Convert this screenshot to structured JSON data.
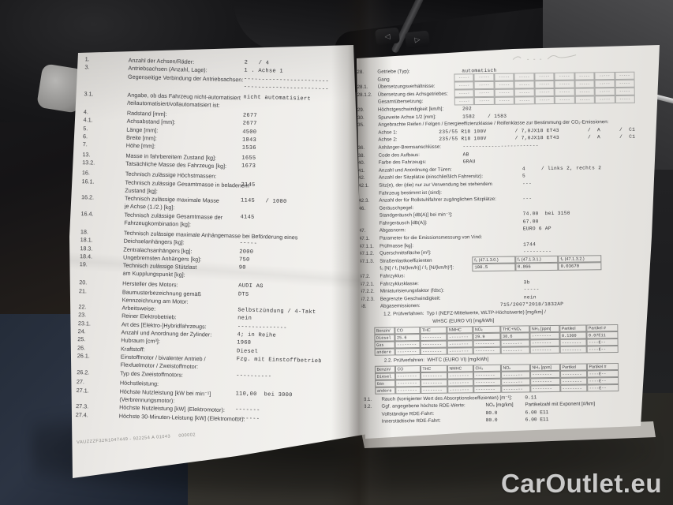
{
  "watermark": "CarOutlet.eu",
  "scene": {
    "left_arrow": "◁",
    "right_arrow": "▷"
  },
  "left_page": {
    "rows": [
      {
        "num": "1.",
        "l1": "Anzahl der Achsen/Räder:",
        "v1": "2   / 4"
      },
      {
        "num": "3.",
        "l1": "Antriebsachsen (Anzahl, Lage):",
        "v1": "1 . Achse 1"
      },
      {
        "l1": "Gegenseitige Verbindung der Antriebsachsen:",
        "v1": "------------------------",
        "l2": " ",
        "v2": "------------------------"
      },
      {
        "num": "3.1.",
        "l1": "Angabe, ob das Fahrzeug nicht-automatisiert",
        "v1": "nicht automatisiert",
        "l2": "/teilautomatisiert/vollautomatisiert ist:",
        "gap": 1
      },
      {
        "num": "4.",
        "l1": "Radstand [mm]:",
        "v1": "2677",
        "gap": 1
      },
      {
        "num": "4.1.",
        "l1": "Achsabstand [mm]:",
        "v1": "2677"
      },
      {
        "num": "5.",
        "l1": "Länge [mm]:",
        "v1": "4500"
      },
      {
        "num": "6.",
        "l1": "Breite [mm]:",
        "v1": "1843"
      },
      {
        "num": "7.",
        "l1": "Höhe [mm]:",
        "v1": "1536"
      },
      {
        "num": "13.",
        "l1": "Masse in fahrbereitem Zustand [kg]:",
        "v1": "1655",
        "gap": 1
      },
      {
        "num": "13.2.",
        "l1": "Tatsächliche Masse des Fahrzeugs [kg]:",
        "v1": "1673"
      },
      {
        "num": "16.",
        "l1": "Technisch zulässige Höchstmassen:",
        "gap": 1
      },
      {
        "num": "16.1.",
        "l1": "Technisch zulässige Gesamtmasse in beladenem",
        "v1": "2145",
        "l2": "Zustand [kg]:"
      },
      {
        "num": "16.2.",
        "l1": "Technisch zulässige maximale Masse",
        "v1": "1145   / 1080",
        "l2": "je Achse (1./2.) [kg]:"
      },
      {
        "num": "16.4.",
        "l1": "Technisch zulässige Gesamtmasse der",
        "v1": "4145",
        "l2": "Fahrzeugkombination [kg]:"
      },
      {
        "num": "18.",
        "l1": "Technisch zulässige maximale Anhängemasse bei Beförderung eines",
        "gap": 1
      },
      {
        "num": "18.1.",
        "l1": "Deichselanhängers [kg]:",
        "v1": "-----"
      },
      {
        "num": "18.3.",
        "l1": "Zentralachsanhängers [kg]:",
        "v1": "2000"
      },
      {
        "num": "18.4.",
        "l1": "Ungebremsten Anhängers [kg]:",
        "v1": "750"
      },
      {
        "num": "19.",
        "l1": "Technisch zulässige Stützlast",
        "v1": "90",
        "l2": "am Kupplungspunkt [kg]:"
      },
      {
        "num": "20.",
        "l1": "Hersteller des Motors:",
        "v1": "AUDI AG",
        "gap": 1
      },
      {
        "num": "21.",
        "l1": "Baumusterbezeichnung gemäß",
        "v1": "DTS",
        "l2": "Kennzeichnung am Motor:"
      },
      {
        "num": "22.",
        "l1": "Arbeitsweise:",
        "v1": "Selbstzündung / 4-Takt"
      },
      {
        "num": "23.",
        "l1": "Reiner Elektrobetrieb:",
        "v1": "nein"
      },
      {
        "num": "23.1.",
        "l1": "Art des [Elektro-]Hybridfahrzeugs:",
        "v1": "--------------"
      },
      {
        "num": "24.",
        "l1": "Anzahl und Anordnung der Zylinder:",
        "v1": "4; in Reihe"
      },
      {
        "num": "25.",
        "l1": "Hubraum [cm³]:",
        "v1": "1968"
      },
      {
        "num": "26.",
        "l1": "Kraftstoff:",
        "v1": "Diesel"
      },
      {
        "num": "26.1.",
        "l1": "Einstoffmotor / bivalenter Antrieb /",
        "v1": "Fzg. mit Einstoffbetrieb",
        "l2": "Flexfuelmotor / Zweistoffmotor:"
      },
      {
        "num": "26.2.",
        "l1": "Typ des Zweistoffmotors:",
        "v1": "----------"
      },
      {
        "num": "27.",
        "l1": "Höchstleistung:",
        "gap": 1
      },
      {
        "num": "27.1.",
        "l1": "Höchste Nutzleistung [kW bei min⁻¹]",
        "v1": "110,00  bei 3000",
        "l2": "(Verbrennungsmotor):"
      },
      {
        "num": "27.3.",
        "l1": "Höchste Nutzleistung [kW] (Elektromotor):",
        "v1": "-------"
      },
      {
        "num": "27.4.",
        "l1": "Höchste 30-Minuten-Leistung [kW] (Elektromotor):",
        "v1": "-------"
      }
    ],
    "serial": "VAUZZZF32N1047449 - 922254 A 01043     000002"
  },
  "right_page": {
    "intro_row": {
      "num": "28.",
      "label": "Getriebe (Typ):",
      "value": "automatisch"
    },
    "gear_rows": [
      {
        "l1": "Gang"
      },
      {
        "num": "28.1.",
        "l1": "Übersetzungsverhältnisse:"
      },
      {
        "num": "28.1.2.",
        "l1": "Übersetzung des Achsgetriebes:"
      },
      {
        "l1": "Gesamtübersetzung:"
      }
    ],
    "gear_grid": [
      [
        "-----",
        "-----",
        "-----",
        "-----",
        "-----",
        "-----",
        "-----",
        "-----",
        "-----"
      ],
      [
        "-----",
        "-----",
        "-----",
        "-----",
        "-----",
        "-----",
        "-----",
        "-----",
        "-----"
      ],
      [
        "-----",
        "-----",
        "-----",
        "-----",
        "-----",
        "-----",
        "-----",
        "-----",
        "-----"
      ],
      [
        "-----",
        "-----",
        "-----",
        "-----",
        "-----",
        "-----",
        "-----",
        "-----",
        "-----"
      ]
    ],
    "rows_a": [
      {
        "num": "29.",
        "l1": "Höchstgeschwindigkeit [km/h]:",
        "v1": "202",
        "vpos": "mid"
      },
      {
        "num": "30.",
        "l1": "Spurweite Achse 1/2 [mm]:",
        "v1": "1582    / 1583",
        "vpos": "mid"
      },
      {
        "num": "35.",
        "l1": "Angebrachte Reifen / Felgen / Energieeffizienzklasse / Reifenklasse zur Bestimmung der CO₂-Emissionen:",
        "wide": 1
      },
      {
        "l1": "Achse 1:",
        "v1": "235/55 R18 100V         / 7,0JX18 ET43         /  A      /  C1",
        "vpos": "near"
      },
      {
        "l1": "Achse 2:",
        "v1": "235/55 R18 100V         / 7,0JX18 ET43         /  A      /  C1",
        "vpos": "near"
      },
      {
        "num": "36.",
        "l1": "Anhänger-Bremsanschlüsse:",
        "v1": "------------------------",
        "vpos": "mid"
      },
      {
        "num": "38.",
        "l1": "Code des Aufbaus:",
        "v1": "AB",
        "vpos": "mid"
      },
      {
        "num": "40.",
        "l1": "Farbe des Fahrzeugs:",
        "v1": "GRAU",
        "vpos": "mid"
      },
      {
        "num": "41.",
        "l1": "Anzahl und Anordnung der Türen:",
        "v1": "4     / links 2, rechts 2",
        "vpos": "farr"
      },
      {
        "num": "42.",
        "l1": "Anzahl der Sitzplätze (einschließlich Fahrersitz):",
        "v1": "5",
        "vpos": "farr"
      },
      {
        "num": "42.1.",
        "l1": "Sitz(e), der (die) nur zur Verwendung bei stehendem",
        "v1": "---",
        "l2": "Fahrzeug bestimmt ist (sind):",
        "vpos": "farr"
      },
      {
        "num": "42.3.",
        "l1": "Anzahl der für Rollstuhlfahrer zugänglichen Sitzplätze:",
        "v1": "---",
        "vpos": "farr"
      },
      {
        "num": "46.",
        "l1": "Geräuschpegel:"
      },
      {
        "l1": "Standgeräusch [dB(A)] bei min⁻¹]:",
        "v1": "74.00  bei 3150",
        "vpos": "farr"
      },
      {
        "l1": "Fahrgeräusch [dB(A)]:",
        "v1": "67.00",
        "vpos": "farr"
      },
      {
        "num": "47.",
        "l1": "Abgasnorm:",
        "v1": "EURO 6 AP",
        "vpos": "farr"
      },
      {
        "num": "47.1.",
        "l1": "Parameter für die Emissionsmessung von Vind:"
      },
      {
        "num": "47.1.1.",
        "l1": "Prüfmasse [kg]:",
        "v1": "1744",
        "vpos": "farr"
      },
      {
        "num": "47.1.2.",
        "l1": "Querschnittsfläche [m²]:",
        "v1": "---------",
        "vpos": "farr"
      }
    ],
    "road_row": {
      "num": "47.1.3.",
      "label1": "Straßenlastkoeffizienten",
      "label2": "f₀ [N] / f₁ [N/(km/h)] / f₂ [N/(km/h)²]:"
    },
    "road_table": [
      [
        "f₀ (47.1.3.0.)",
        "f₁ (47.1.3.1.)",
        "f₂ (47.1.3.2.)"
      ],
      [
        "100.5",
        "0.866",
        "0.03670"
      ]
    ],
    "rows_b": [
      {
        "num": "47.2.",
        "l1": "Fahrzyklus:"
      },
      {
        "num": "47.2.1.",
        "l1": "Fahrzyklusklasse:",
        "v1": "3b",
        "vpos": "farr"
      },
      {
        "num": "47.2.2.",
        "l1": "Miniaturisierungsfaktor (fdsc):",
        "v1": "-----",
        "vpos": "farr"
      },
      {
        "num": "47.2.3.",
        "l1": "Begrenzte Geschwindigkeit:",
        "v1": "nein",
        "vpos": "farr"
      },
      {
        "num": "48.",
        "l1": "Abgasemissionen:",
        "v1": "715/2007*2018/1832AP",
        "vpos": "far"
      }
    ],
    "test12": {
      "line1": "1.2. Prüfverfahren:  Typ I (NEFZ-Mittelwerte, WLTP-Höchstwerte) [mg/km] /",
      "line2": "WHSC (EURO VI) [mg/kWh]",
      "table": [
        [
          "Benzin/",
          "CO",
          "THC",
          "NMHC",
          "NOₓ",
          "THC+NOₓ",
          "NH₃ [ppm]",
          "Partikel",
          "Partikel #"
        ],
        [
          "Diesel",
          "25.6",
          "--------",
          "--------",
          "29.9",
          "38.6",
          "--------",
          "0.1300",
          "0.07E11"
        ],
        [
          "Gas",
          "--------",
          "--------",
          "--------",
          "--------",
          "--------",
          "--------",
          "--------",
          "----E--"
        ],
        [
          "andere",
          "--------",
          "--------",
          "--------",
          "--------",
          "--------",
          "--------",
          "--------",
          "----E--"
        ]
      ]
    },
    "test22": {
      "line1": "2.2. Prüfverfahren:  WHTC (EURO VI) [mg/kWh]",
      "table": [
        [
          "Benzin/",
          "CO",
          "THC",
          "NMHC",
          "CH₄",
          "NOₓ",
          "NH₃ [ppm]",
          "Partikel",
          "Partikel #"
        ],
        [
          "Diesel",
          "--------",
          "--------",
          "--------",
          "--------",
          "--------",
          "--------",
          "--------",
          "----E--"
        ],
        [
          "Gas",
          "--------",
          "--------",
          "--------",
          "--------",
          "--------",
          "--------",
          "--------",
          "----E--"
        ],
        [
          "andere",
          "--------",
          "--------",
          "--------",
          "--------",
          "--------",
          "--------",
          "--------",
          "----E--"
        ]
      ]
    },
    "rows_c": [
      {
        "num": "48.1.",
        "l1": "Rauch (korrigierter Wert des Absorptionskoeffizienten) [m⁻¹]:",
        "c2": "0.11"
      },
      {
        "num": "48.2.",
        "l1": "Ggf. angegebene höchste RDE-Werte:",
        "c1": "NOₓ [mg/km]",
        "c2": "Partikelzahl mit Exponent [#/km]",
        "hdr": 1
      },
      {
        "l1": "Vollständige RDE-Fahrt:",
        "c1": "80.0",
        "c2": "6.00 E11"
      },
      {
        "l1": "Innerstädtische RDE-Fahrt:",
        "c1": "80.0",
        "c2": "6.00 E11"
      }
    ]
  }
}
